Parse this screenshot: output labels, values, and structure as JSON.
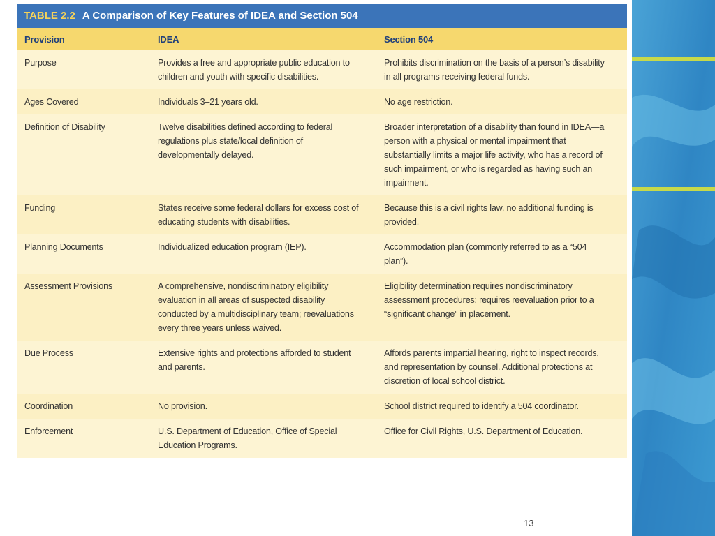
{
  "table": {
    "label": "TABLE 2.2",
    "title": "A Comparison of Key Features of IDEA and Section 504",
    "header": [
      "Provision",
      "IDEA",
      "Section 504"
    ],
    "rows": [
      [
        "Purpose",
        "Provides a free and appropriate public education to children and youth with specific disabilities.",
        "Prohibits discrimination on the basis of a person’s disability in all programs receiving federal funds."
      ],
      [
        "Ages Covered",
        "Individuals 3–21 years old.",
        "No age restriction."
      ],
      [
        "Definition of Disability",
        "Twelve disabilities defined according to federal regulations plus state/local definition of developmentally delayed.",
        "Broader interpretation of a disability than found in IDEA—a person with a physical or mental impairment that substantially limits a major life activity, who has a record of such impairment, or who is regarded as having such an impairment."
      ],
      [
        "Funding",
        "States receive some federal dollars for excess cost of educating students with disabilities.",
        "Because this is a civil rights law, no additional funding is provided."
      ],
      [
        "Planning Documents",
        "Individualized education program (IEP).",
        "Accommodation plan (commonly referred to as a “504 plan”)."
      ],
      [
        "Assessment Provisions",
        "A comprehensive, nondiscriminatory eligibility evaluation in all areas of suspected disability conducted by a multidisciplinary team; reevaluations every three years unless waived.",
        "Eligibility determination requires nondiscriminatory assessment procedures; requires reevaluation prior to a “significant change” in placement."
      ],
      [
        "Due Process",
        "Extensive rights and protections afforded to student and parents.",
        "Affords parents impartial hearing, right to inspect records, and representation by counsel. Additional protections at discretion of local school district."
      ],
      [
        "Coordination",
        "No provision.",
        "School district required to identify a 504 coordinator."
      ],
      [
        "Enforcement",
        "U.S. Department of Education, Office of Special Education Programs.",
        "Office for Civil Rights, U.S. Department of Education."
      ]
    ]
  },
  "page_number": "13"
}
